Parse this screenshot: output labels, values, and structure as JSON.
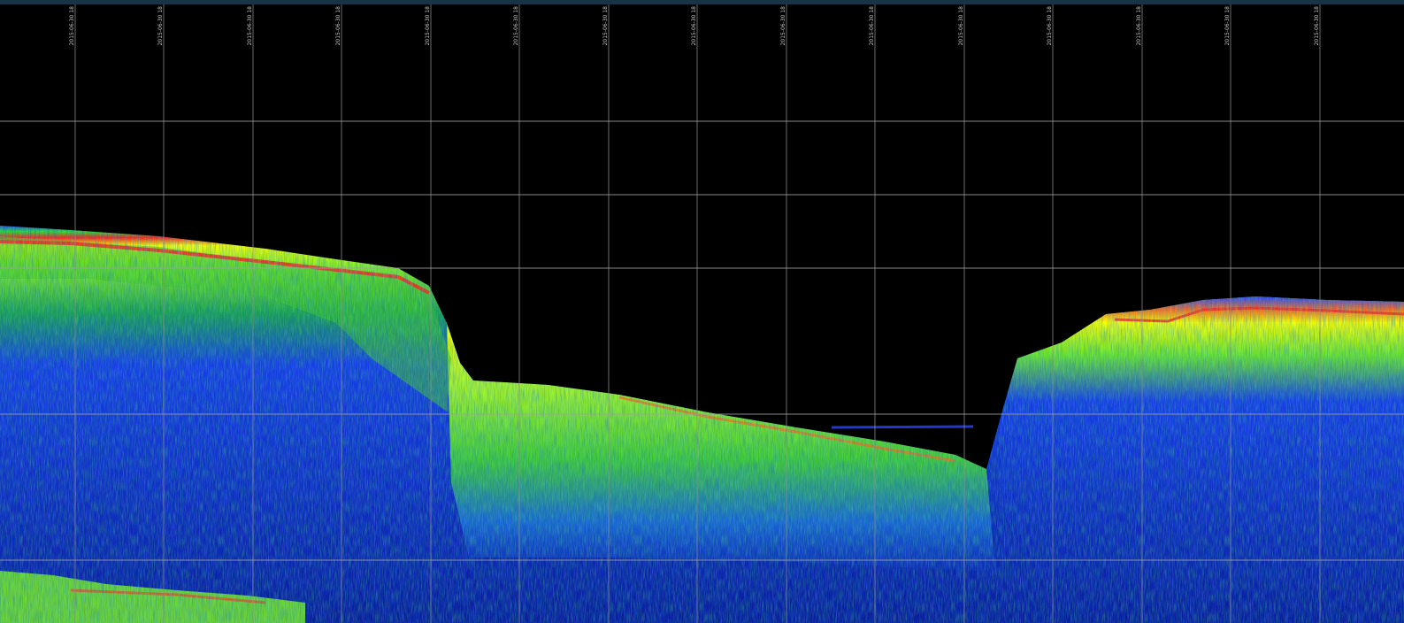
{
  "image": {
    "kind": "sonar echogram (water-column / sub-bottom profile)",
    "palette": [
      "#000000",
      "#0a1aa0",
      "#1e3cff",
      "#14b4a0",
      "#28dc28",
      "#a0ff1e",
      "#ffff00",
      "#ff7800",
      "#ff1e1e"
    ],
    "background_color": "#000000",
    "top_bar_color": "#163446",
    "grid_color": "#8c8c8c"
  },
  "time_ticks": [
    "2015-06-30 18",
    "2015-06-30 18",
    "2015-06-30 18",
    "2015-06-30 18",
    "2015-06-30 18",
    "2015-06-30 18",
    "2015-06-30 18",
    "2015-06-30 18",
    "2015-06-30 18",
    "2015-06-30 18",
    "2015-06-30 18",
    "2015-06-30 18",
    "2015-06-30 18",
    "2015-06-30 18",
    "2015-06-30 18"
  ]
}
